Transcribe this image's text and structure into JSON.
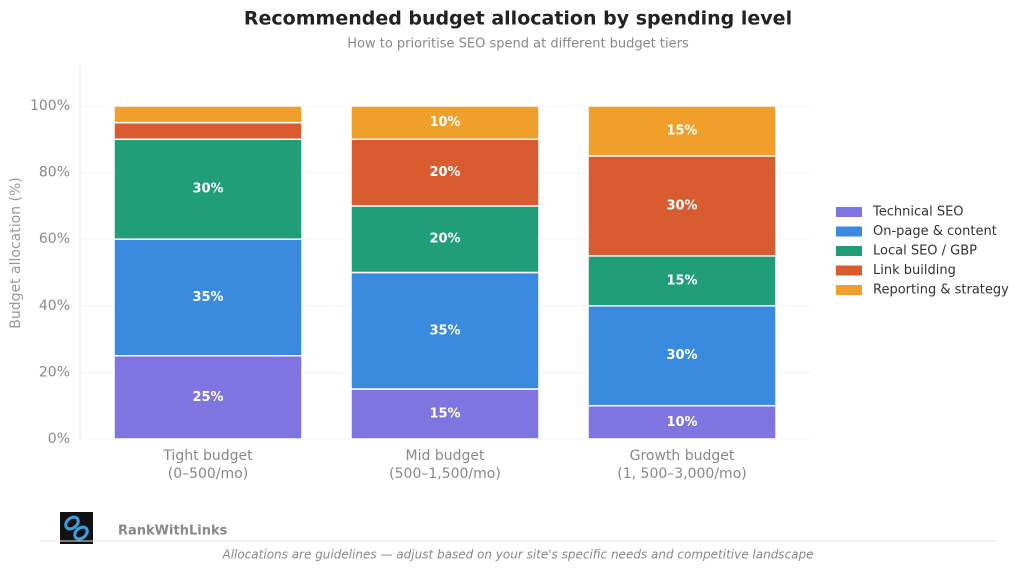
{
  "chart_data": {
    "type": "stacked-bar",
    "title": "Recommended budget allocation by spending level",
    "subtitle": "How to prioritise SEO spend at different budget tiers",
    "y_label": "Budget allocation (%)",
    "categories": [
      [
        "Tight budget",
        "(0–500/mo)"
      ],
      [
        "Mid budget",
        "(500–1,500/mo)"
      ],
      [
        "Growth budget",
        "(1, 500–3,000/mo)"
      ]
    ],
    "series": [
      {
        "name": "Technical SEO",
        "color": "#8074e0",
        "values": [
          25,
          15,
          10
        ],
        "value_labels": [
          "25%",
          "15%",
          "10%"
        ]
      },
      {
        "name": "On-page & content",
        "color": "#3a8ae0",
        "values": [
          35,
          35,
          30
        ],
        "value_labels": [
          "35%",
          "35%",
          "30%"
        ]
      },
      {
        "name": "Local SEO / GBP",
        "color": "#1f9e77",
        "values": [
          30,
          20,
          15
        ],
        "value_labels": [
          "30%",
          "20%",
          "15%"
        ]
      },
      {
        "name": "Link building",
        "color": "#d95b30",
        "values": [
          5,
          20,
          30
        ],
        "value_labels": [
          null,
          "20%",
          "30%"
        ]
      },
      {
        "name": "Reporting & strategy",
        "color": "#f0a02a",
        "values": [
          5,
          10,
          15
        ],
        "value_labels": [
          null,
          "10%",
          "15%"
        ]
      }
    ],
    "ylim": [
      0,
      112
    ],
    "yticks": [
      {
        "value": 0,
        "label": "0%"
      },
      {
        "value": 20,
        "label": "20%"
      },
      {
        "value": 40,
        "label": "40%"
      },
      {
        "value": 60,
        "label": "60%"
      },
      {
        "value": 80,
        "label": "80%"
      },
      {
        "value": 100,
        "label": "100%"
      }
    ],
    "grid": true,
    "legend": "right",
    "brand": "RankWithLinks",
    "footnote": "Allocations are guidelines — adjust based on your site's specific needs and competitive landscape"
  }
}
